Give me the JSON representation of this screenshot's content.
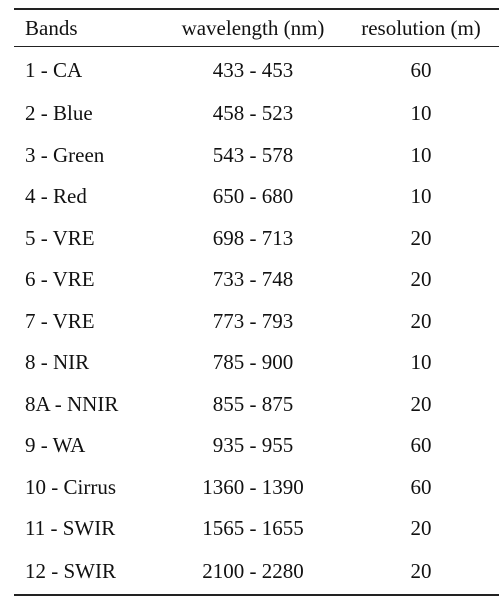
{
  "table": {
    "headers": {
      "band": "Bands",
      "wavelength": "wavelength (nm)",
      "resolution": "resolution (m)"
    },
    "rows": [
      {
        "band": "1 - CA",
        "wavelength": "433 - 453",
        "resolution": "60"
      },
      {
        "band": "2 - Blue",
        "wavelength": "458 - 523",
        "resolution": "10"
      },
      {
        "band": "3 - Green",
        "wavelength": "543 - 578",
        "resolution": "10"
      },
      {
        "band": "4 - Red",
        "wavelength": "650 - 680",
        "resolution": "10"
      },
      {
        "band": "5 - VRE",
        "wavelength": "698 - 713",
        "resolution": "20"
      },
      {
        "band": "6 - VRE",
        "wavelength": "733 - 748",
        "resolution": "20"
      },
      {
        "band": "7 - VRE",
        "wavelength": "773 - 793",
        "resolution": "20"
      },
      {
        "band": "8 - NIR",
        "wavelength": "785 - 900",
        "resolution": "10"
      },
      {
        "band": "8A - NNIR",
        "wavelength": "855 - 875",
        "resolution": "20"
      },
      {
        "band": "9 - WA",
        "wavelength": "935 - 955",
        "resolution": "60"
      },
      {
        "band": "10 - Cirrus",
        "wavelength": "1360 - 1390",
        "resolution": "60"
      },
      {
        "band": "11 - SWIR",
        "wavelength": "1565 - 1655",
        "resolution": "20"
      },
      {
        "band": "12 - SWIR",
        "wavelength": "2100 - 2280",
        "resolution": "20"
      }
    ]
  }
}
